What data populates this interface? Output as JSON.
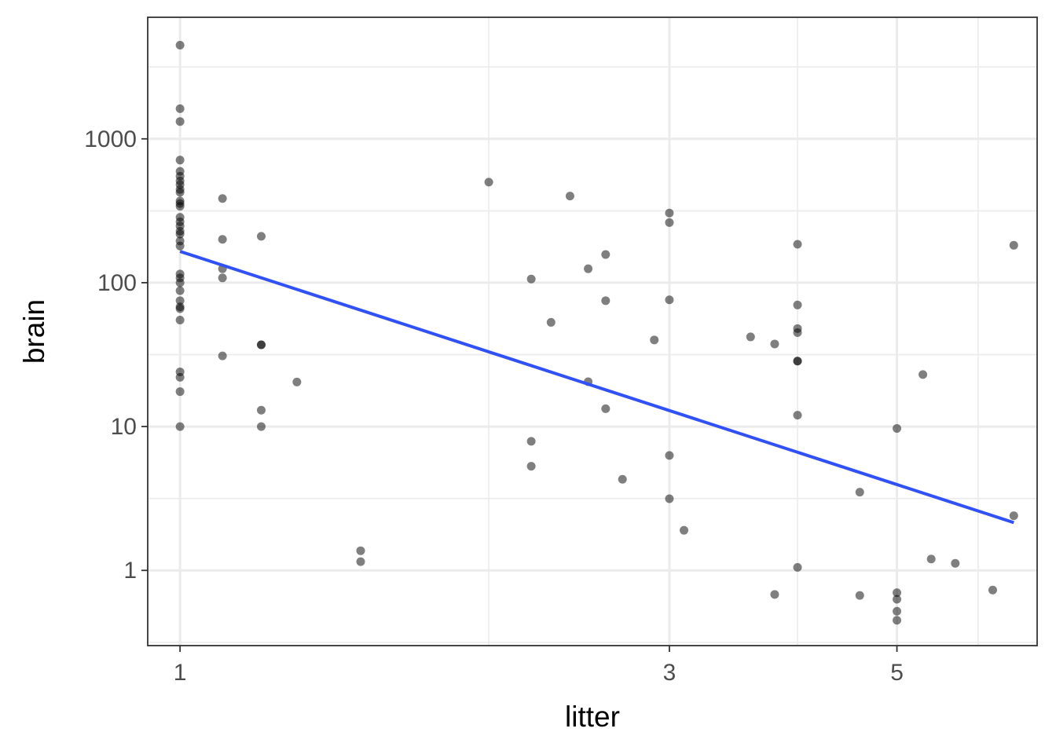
{
  "chart_data": {
    "type": "scatter",
    "xlabel": "litter",
    "ylabel": "brain",
    "x_scale": "log",
    "y_scale": "log",
    "xlim": [
      0.93,
      6.85
    ],
    "ylim": [
      0.3,
      7000
    ],
    "x_ticks": [
      {
        "value": 1,
        "label": "1"
      },
      {
        "value": 3,
        "label": "3"
      },
      {
        "value": 5,
        "label": "5"
      }
    ],
    "x_minor_ticks": [
      2,
      4,
      6
    ],
    "y_ticks": [
      {
        "value": 1,
        "label": "1"
      },
      {
        "value": 10,
        "label": "10"
      },
      {
        "value": 100,
        "label": "100"
      },
      {
        "value": 1000,
        "label": "1000"
      }
    ],
    "y_minor_ticks": [
      0.316,
      3.16,
      31.6,
      316,
      3160
    ],
    "grid": true,
    "colors": {
      "points": "#000000",
      "trend_line": "#3050f8",
      "grid": "#ebebeb",
      "panel_border": "#333333"
    },
    "trend_line": {
      "x": [
        1,
        6.5
      ],
      "y": [
        165,
        2.15
      ]
    },
    "points": [
      {
        "x": 1,
        "y": 4480
      },
      {
        "x": 1,
        "y": 1620
      },
      {
        "x": 1,
        "y": 1320
      },
      {
        "x": 1,
        "y": 712
      },
      {
        "x": 1,
        "y": 595
      },
      {
        "x": 1,
        "y": 550
      },
      {
        "x": 1,
        "y": 510
      },
      {
        "x": 1,
        "y": 480
      },
      {
        "x": 1,
        "y": 445
      },
      {
        "x": 1,
        "y": 425
      },
      {
        "x": 1,
        "y": 370
      },
      {
        "x": 1,
        "y": 355
      },
      {
        "x": 1,
        "y": 340
      },
      {
        "x": 1,
        "y": 285
      },
      {
        "x": 1,
        "y": 265
      },
      {
        "x": 1,
        "y": 248
      },
      {
        "x": 1,
        "y": 228
      },
      {
        "x": 1,
        "y": 218
      },
      {
        "x": 1,
        "y": 195
      },
      {
        "x": 1,
        "y": 180
      },
      {
        "x": 1,
        "y": 115
      },
      {
        "x": 1,
        "y": 108
      },
      {
        "x": 1,
        "y": 100
      },
      {
        "x": 1,
        "y": 88
      },
      {
        "x": 1,
        "y": 75
      },
      {
        "x": 1,
        "y": 68
      },
      {
        "x": 1,
        "y": 66
      },
      {
        "x": 1,
        "y": 55
      },
      {
        "x": 1,
        "y": 24
      },
      {
        "x": 1,
        "y": 22
      },
      {
        "x": 1,
        "y": 17.5
      },
      {
        "x": 1,
        "y": 10
      },
      {
        "x": 1.1,
        "y": 385
      },
      {
        "x": 1.1,
        "y": 200
      },
      {
        "x": 1.1,
        "y": 125
      },
      {
        "x": 1.1,
        "y": 108
      },
      {
        "x": 1.1,
        "y": 31
      },
      {
        "x": 1.2,
        "y": 210
      },
      {
        "x": 1.2,
        "y": 37
      },
      {
        "x": 1.2,
        "y": 37
      },
      {
        "x": 1.2,
        "y": 13
      },
      {
        "x": 1.2,
        "y": 10
      },
      {
        "x": 1.3,
        "y": 20.4
      },
      {
        "x": 1.5,
        "y": 1.37
      },
      {
        "x": 1.5,
        "y": 1.15
      },
      {
        "x": 2.0,
        "y": 500
      },
      {
        "x": 2.2,
        "y": 106
      },
      {
        "x": 2.2,
        "y": 7.9
      },
      {
        "x": 2.2,
        "y": 5.3
      },
      {
        "x": 2.3,
        "y": 53
      },
      {
        "x": 2.4,
        "y": 400
      },
      {
        "x": 2.5,
        "y": 125
      },
      {
        "x": 2.5,
        "y": 20.5
      },
      {
        "x": 2.6,
        "y": 157
      },
      {
        "x": 2.6,
        "y": 75
      },
      {
        "x": 2.6,
        "y": 13.3
      },
      {
        "x": 2.7,
        "y": 4.3
      },
      {
        "x": 2.9,
        "y": 40
      },
      {
        "x": 3.0,
        "y": 305
      },
      {
        "x": 3.0,
        "y": 262
      },
      {
        "x": 3.0,
        "y": 76
      },
      {
        "x": 3.0,
        "y": 6.3
      },
      {
        "x": 3.0,
        "y": 3.15
      },
      {
        "x": 3.1,
        "y": 1.9
      },
      {
        "x": 3.6,
        "y": 42
      },
      {
        "x": 3.8,
        "y": 37.5
      },
      {
        "x": 3.8,
        "y": 0.68
      },
      {
        "x": 4.0,
        "y": 185
      },
      {
        "x": 4.0,
        "y": 70
      },
      {
        "x": 4.0,
        "y": 48
      },
      {
        "x": 4.0,
        "y": 45
      },
      {
        "x": 4.0,
        "y": 28.5
      },
      {
        "x": 4.0,
        "y": 28.5
      },
      {
        "x": 4.0,
        "y": 12
      },
      {
        "x": 4.0,
        "y": 1.05
      },
      {
        "x": 4.6,
        "y": 3.5
      },
      {
        "x": 4.6,
        "y": 0.67
      },
      {
        "x": 5.0,
        "y": 9.7
      },
      {
        "x": 5.0,
        "y": 0.7
      },
      {
        "x": 5.0,
        "y": 0.63
      },
      {
        "x": 5.0,
        "y": 0.52
      },
      {
        "x": 5.0,
        "y": 0.45
      },
      {
        "x": 5.3,
        "y": 23
      },
      {
        "x": 5.4,
        "y": 1.2
      },
      {
        "x": 5.7,
        "y": 1.12
      },
      {
        "x": 6.2,
        "y": 0.73
      },
      {
        "x": 6.5,
        "y": 182
      },
      {
        "x": 6.5,
        "y": 2.4
      }
    ]
  }
}
